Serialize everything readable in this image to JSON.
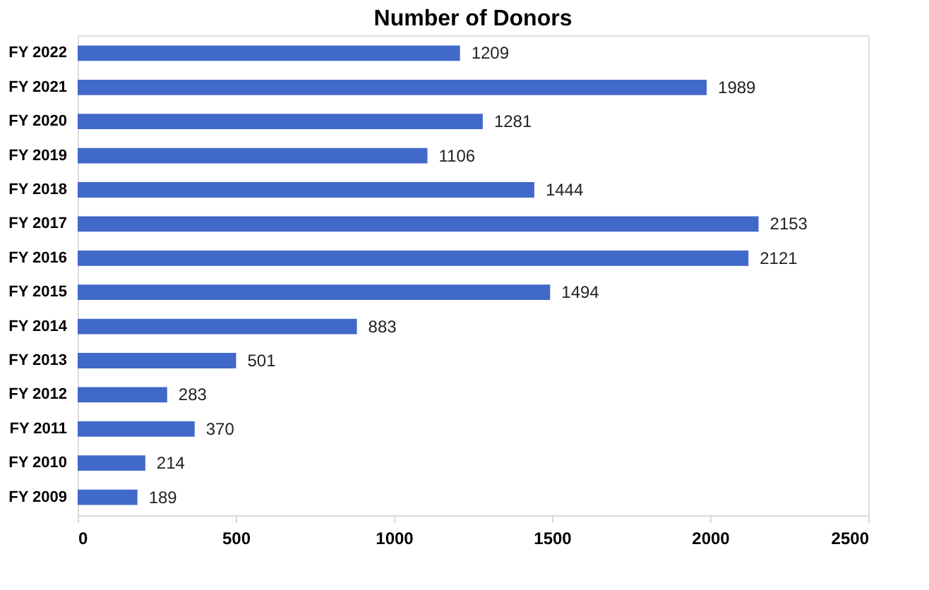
{
  "chart_data": {
    "type": "bar",
    "orientation": "horizontal",
    "title": "Number of Donors",
    "categories": [
      "FY 2022",
      "FY 2021",
      "FY 2020",
      "FY 2019",
      "FY 2018",
      "FY 2017",
      "FY 2016",
      "FY 2015",
      "FY 2014",
      "FY 2013",
      "FY 2012",
      "FY 2011",
      "FY 2010",
      "FY 2009"
    ],
    "values": [
      1209,
      1989,
      1281,
      1106,
      1444,
      2153,
      2121,
      1494,
      883,
      501,
      283,
      370,
      214,
      189
    ],
    "color": "#4169c9",
    "xlim": [
      0,
      2500
    ],
    "xticks": [
      0,
      500,
      1000,
      1500,
      2000,
      2500
    ],
    "grid": false,
    "data_labels": true
  }
}
